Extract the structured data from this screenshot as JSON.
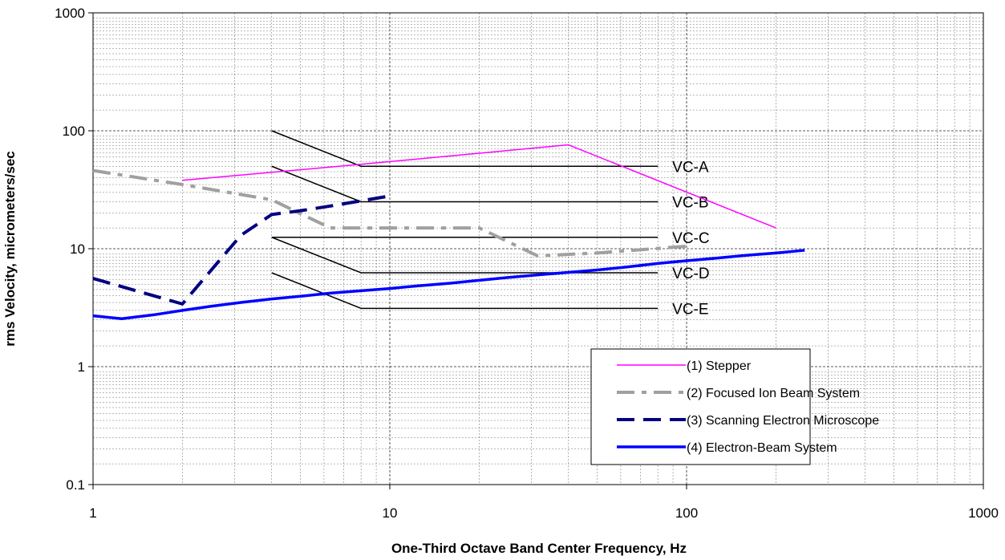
{
  "chart_data": {
    "type": "line",
    "xlabel": "One-Third Octave Band Center Frequency, Hz",
    "ylabel": "rms Velocity, micrometers/sec",
    "x_scale": "log",
    "y_scale": "log",
    "xlim": [
      1,
      1000
    ],
    "ylim": [
      0.1,
      1000
    ],
    "grid": true,
    "legend_position": "bottom-right",
    "x_ticks": [
      "1",
      "10",
      "100",
      "1000"
    ],
    "y_ticks": [
      "0.1",
      "1",
      "10",
      "100",
      "1000"
    ],
    "series": [
      {
        "name": "(1) Stepper",
        "color": "#ff00ff",
        "style": "solid-thin",
        "points": [
          [
            2,
            38
          ],
          [
            8,
            52
          ],
          [
            40,
            76
          ],
          [
            200,
            15
          ]
        ]
      },
      {
        "name": "(2) Focused Ion Beam System",
        "color": "#a0a0a0",
        "style": "dash-dot-thick",
        "points": [
          [
            1,
            46
          ],
          [
            2,
            35
          ],
          [
            4,
            26
          ],
          [
            6.3,
            15
          ],
          [
            10,
            15
          ],
          [
            20,
            15
          ],
          [
            31.5,
            8.7
          ],
          [
            50,
            9.2
          ],
          [
            100,
            10.5
          ]
        ]
      },
      {
        "name": "(3) Scanning Electron Microscope",
        "color": "#000080",
        "style": "dash-thick",
        "points": [
          [
            1,
            5.6
          ],
          [
            2,
            3.4
          ],
          [
            3.15,
            13
          ],
          [
            4,
            19.5
          ],
          [
            5,
            21
          ],
          [
            6.3,
            23
          ],
          [
            10,
            28
          ]
        ]
      },
      {
        "name": "(4) Electron-Beam System",
        "color": "#0000ff",
        "style": "solid-thick",
        "points": [
          [
            1,
            2.7
          ],
          [
            1.25,
            2.55
          ],
          [
            1.6,
            2.75
          ],
          [
            2,
            3
          ],
          [
            2.5,
            3.25
          ],
          [
            3.15,
            3.5
          ],
          [
            4,
            3.75
          ],
          [
            5,
            3.95
          ],
          [
            6.3,
            4.2
          ],
          [
            8,
            4.4
          ],
          [
            10,
            4.6
          ],
          [
            12.5,
            4.85
          ],
          [
            16,
            5.1
          ],
          [
            20,
            5.4
          ],
          [
            25,
            5.7
          ],
          [
            31.5,
            6
          ],
          [
            40,
            6.3
          ],
          [
            50,
            6.6
          ],
          [
            63,
            7
          ],
          [
            80,
            7.5
          ],
          [
            100,
            7.9
          ],
          [
            125,
            8.3
          ],
          [
            160,
            8.8
          ],
          [
            200,
            9.2
          ],
          [
            250,
            9.7
          ]
        ]
      }
    ],
    "reference_curves": [
      {
        "label": "VC-A",
        "points": [
          [
            4,
            100
          ],
          [
            8,
            50
          ],
          [
            80,
            50
          ]
        ]
      },
      {
        "label": "VC-B",
        "points": [
          [
            4,
            50
          ],
          [
            8,
            25
          ],
          [
            80,
            25
          ]
        ]
      },
      {
        "label": "VC-C",
        "points": [
          [
            4,
            12.5
          ],
          [
            8,
            12.5
          ],
          [
            80,
            12.5
          ]
        ]
      },
      {
        "label": "VC-D",
        "points": [
          [
            4,
            12.5
          ],
          [
            8,
            6.25
          ],
          [
            80,
            6.25
          ]
        ]
      },
      {
        "label": "VC-E",
        "points": [
          [
            4,
            6.25
          ],
          [
            8,
            3.12
          ],
          [
            80,
            3.12
          ]
        ]
      }
    ]
  }
}
